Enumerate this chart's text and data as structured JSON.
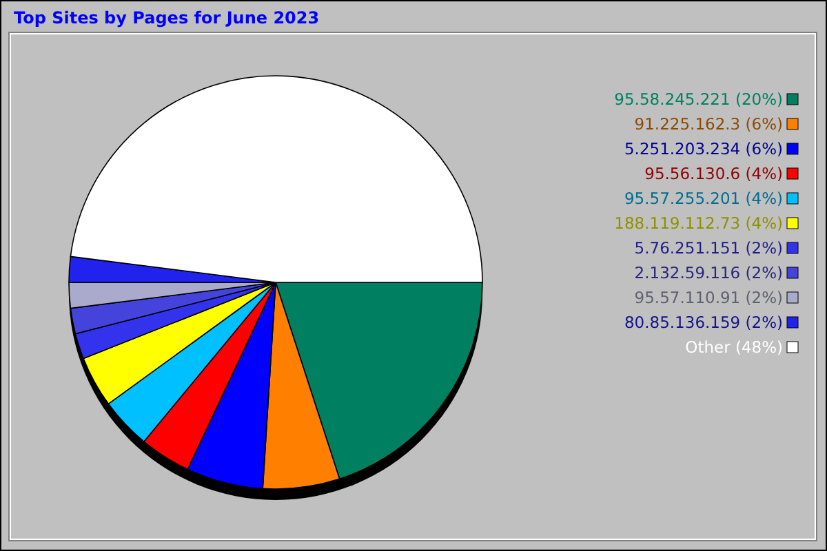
{
  "chart_data": {
    "type": "pie",
    "title": "Top Sites by Pages for June 2023",
    "categories": [
      "95.58.245.221",
      "91.225.162.3",
      "5.251.203.234",
      "95.56.130.6",
      "95.57.255.201",
      "188.119.112.73",
      "5.76.251.151",
      "2.132.59.116",
      "95.57.110.91",
      "80.85.136.159",
      "Other"
    ],
    "values": [
      20,
      6,
      6,
      4,
      4,
      4,
      2,
      2,
      2,
      2,
      48
    ],
    "value_labels": [
      "(20%)",
      "(6%)",
      "(6%)",
      "(4%)",
      "(4%)",
      "(4%)",
      "(2%)",
      "(2%)",
      "(2%)",
      "(2%)",
      "(48%)"
    ],
    "colors": [
      "#008060",
      "#ff8000",
      "#0000ff",
      "#ff0000",
      "#00c0ff",
      "#ffff00",
      "#3333ee",
      "#4444dd",
      "#aaaacc",
      "#2222ee",
      "#ffffff"
    ],
    "legend": "right"
  }
}
